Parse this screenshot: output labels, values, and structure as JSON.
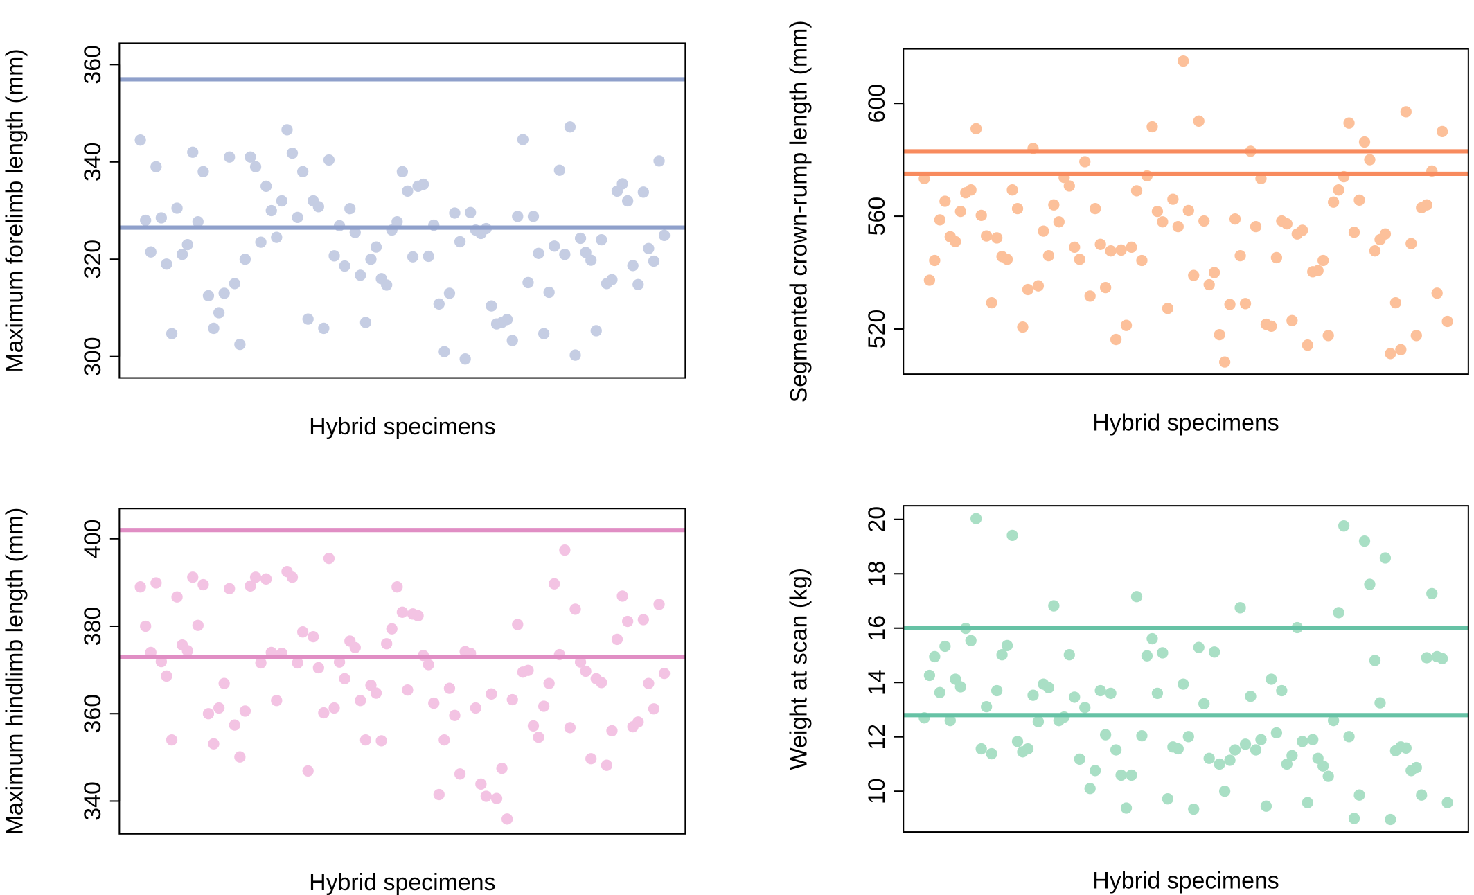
{
  "chart_data": [
    {
      "type": "scatter",
      "ylabel": "Maximum forelimb length (mm)",
      "xlabel": "Hybrid specimens",
      "color": "#c5cde3",
      "line_color": "#8fa0cb",
      "ylim": [
        295.6,
        364.4
      ],
      "yticks": [
        300,
        320,
        340,
        360
      ],
      "hlines": [
        357,
        326.5
      ],
      "values": [
        344.5,
        328,
        321.5,
        339,
        328.5,
        319,
        304.7,
        330.5,
        321,
        323,
        342,
        327.7,
        338,
        312.5,
        305.8,
        309,
        313,
        341,
        315,
        302.5,
        320,
        341,
        339,
        323.5,
        335,
        330,
        324.5,
        332,
        346.6,
        341.8,
        328.6,
        338,
        307.7,
        332,
        330.8,
        305.8,
        340.4,
        320.7,
        326.9,
        318.6,
        330.4,
        325.5,
        316.7,
        307,
        320,
        322.5,
        316,
        314.7,
        326,
        327.7,
        338,
        334,
        320.5,
        335,
        335.4,
        320.6,
        327,
        310.8,
        301,
        313,
        329.5,
        323.6,
        299.5,
        329.6,
        326,
        325.3,
        326.3,
        310.4,
        306.7,
        307,
        307.6,
        303.3,
        328.8,
        344.6,
        315.2,
        328.8,
        321.2,
        304.7,
        313.2,
        322.7,
        338.3,
        321,
        347.2,
        300.3,
        324.3,
        321.4,
        319.8,
        305.3,
        324,
        315,
        315.8,
        334,
        335.5,
        332,
        318.7,
        314.8,
        333.8,
        322.2,
        319.6,
        340.2,
        324.9
      ]
    },
    {
      "type": "scatter",
      "ylabel": "Segmented crown-rump length (mm)",
      "xlabel": "Hybrid specimens",
      "color": "#fcc09a",
      "line_color": "#f88b5e",
      "ylim": [
        504,
        619.3
      ],
      "yticks": [
        520,
        560,
        600
      ],
      "hlines": [
        583,
        575
      ],
      "values": [
        573.3,
        537.3,
        544.3,
        558.7,
        565.3,
        552.7,
        551,
        561.7,
        568.3,
        569.3,
        591,
        560.3,
        553,
        529.3,
        552.3,
        545.7,
        544.7,
        569.3,
        562.7,
        520.7,
        534,
        584,
        535.3,
        554.7,
        546,
        564,
        558,
        573.7,
        570.7,
        549,
        544.7,
        579.3,
        531.7,
        562.7,
        550,
        534.7,
        547.7,
        516.3,
        548,
        521.3,
        549,
        569,
        544.3,
        574.3,
        591.7,
        561.7,
        558,
        527.3,
        566,
        556.3,
        615,
        562,
        539,
        593.7,
        558.3,
        535.7,
        540,
        518,
        508.3,
        528.7,
        559,
        546,
        529,
        583,
        556.3,
        573.3,
        521.7,
        521,
        545.3,
        558.3,
        557.3,
        523,
        553.7,
        555,
        514.3,
        540.3,
        540.7,
        544.3,
        517.7,
        565,
        569.3,
        574,
        593,
        554.3,
        565.7,
        586.3,
        580,
        547.7,
        551.7,
        553.7,
        511.3,
        529.3,
        512.7,
        597,
        550.3,
        517.7,
        563,
        564,
        576,
        532.7,
        590,
        522.7
      ]
    },
    {
      "type": "scatter",
      "ylabel": "Maximum hindlimb length (mm)",
      "xlabel": "Hybrid specimens",
      "color": "#f3c3e3",
      "line_color": "#e08ec4",
      "ylim": [
        332.5,
        406.9
      ],
      "yticks": [
        340,
        360,
        380,
        400
      ],
      "hlines": [
        402,
        373
      ],
      "values": [
        389,
        380,
        374,
        389.9,
        371.9,
        368.6,
        354,
        386.7,
        375.7,
        374.4,
        391.2,
        380.2,
        389.5,
        360,
        353.1,
        361.3,
        366.9,
        388.6,
        357.4,
        350.1,
        360.6,
        389.2,
        391.2,
        371.6,
        390.8,
        374,
        363,
        373.8,
        392.5,
        391.2,
        371.6,
        378.7,
        346.9,
        377.6,
        370.5,
        360.2,
        395.5,
        361.3,
        371.8,
        368,
        376.6,
        375.1,
        363,
        354,
        366.5,
        364.7,
        353.8,
        376,
        379.4,
        389,
        383.2,
        365.4,
        382.8,
        382.4,
        373.3,
        371.2,
        362.4,
        341.5,
        354,
        365.8,
        359.6,
        346.2,
        374.2,
        373.8,
        361.3,
        343.9,
        341.1,
        364.5,
        340.6,
        347.5,
        335.9,
        363.2,
        380.4,
        369.5,
        369.9,
        357.2,
        354.6,
        361.7,
        366.9,
        389.7,
        373.5,
        397.4,
        356.8,
        383.9,
        371.8,
        369.7,
        349.7,
        368,
        367.1,
        348.2,
        356.1,
        377,
        386.9,
        381.1,
        357,
        358.1,
        381.5,
        366.9,
        361.1,
        385,
        369.2
      ]
    },
    {
      "type": "scatter",
      "ylabel": "Weight at scan (kg)",
      "xlabel": "Hybrid specimens",
      "color": "#a9dfc5",
      "line_color": "#66c2a5",
      "ylim": [
        8.5,
        20.5
      ],
      "yticks": [
        10,
        12,
        14,
        16,
        18,
        20
      ],
      "hlines": [
        16,
        12.8
      ],
      "values": [
        12.7,
        14.26,
        14.95,
        13.63,
        15.33,
        12.6,
        14.12,
        13.84,
        15.99,
        15.54,
        20.03,
        11.56,
        13.11,
        11.38,
        13.7,
        15.02,
        15.36,
        19.41,
        11.83,
        11.45,
        11.56,
        13.53,
        12.56,
        13.94,
        13.81,
        16.82,
        12.6,
        12.73,
        15.02,
        13.46,
        11.18,
        13.08,
        10.1,
        10.76,
        13.7,
        12.08,
        13.6,
        11.52,
        10.59,
        9.38,
        10.59,
        17.16,
        12.04,
        14.98,
        15.61,
        13.6,
        15.09,
        9.72,
        11.63,
        11.56,
        13.94,
        12.01,
        9.34,
        15.29,
        13.22,
        11.21,
        15.12,
        11,
        10,
        11.14,
        11.52,
        16.75,
        11.73,
        13.49,
        11.52,
        11.9,
        9.45,
        14.12,
        12.15,
        13.7,
        11,
        11.31,
        16.02,
        11.83,
        9.58,
        11.9,
        11.21,
        10.93,
        10.55,
        12.6,
        16.57,
        19.76,
        12.01,
        9,
        9.86,
        19.2,
        17.61,
        14.81,
        13.25,
        18.58,
        8.96,
        11.49,
        11.63,
        11.59,
        10.76,
        10.87,
        9.86,
        14.91,
        17.27,
        14.95,
        14.88,
        9.58
      ]
    }
  ]
}
